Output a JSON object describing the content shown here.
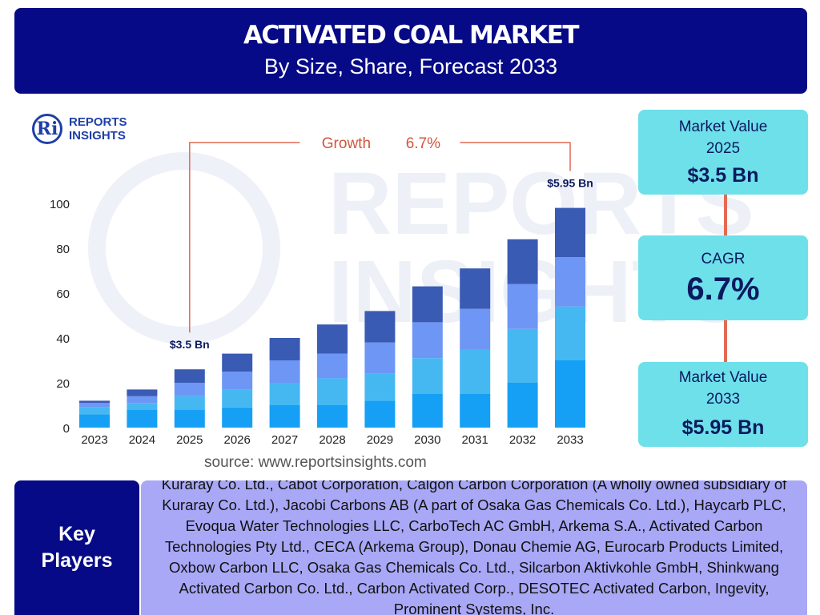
{
  "header": {
    "title": "ACTIVATED COAL MARKET",
    "subtitle": "By Size, Share, Forecast 2033"
  },
  "logo": {
    "line1": "REPORTS",
    "line2": "INSIGHTS",
    "mark": "Ri"
  },
  "watermark": {
    "text": "REPORTS INSIGHTS"
  },
  "chart_data": {
    "type": "bar",
    "stacked": true,
    "categories": [
      "2023",
      "2024",
      "2025",
      "2026",
      "2027",
      "2028",
      "2029",
      "2030",
      "2031",
      "2032",
      "2033"
    ],
    "series": [
      {
        "values": [
          6,
          8,
          8,
          9,
          10,
          10,
          12,
          15,
          15,
          20,
          30
        ]
      },
      {
        "values": [
          3,
          3,
          6,
          8,
          10,
          12,
          12,
          16,
          20,
          24,
          24
        ]
      },
      {
        "values": [
          2,
          3,
          6,
          8,
          10,
          11,
          14,
          16,
          18,
          20,
          22
        ]
      },
      {
        "values": [
          1,
          3,
          6,
          8,
          10,
          13,
          14,
          16,
          18,
          20,
          22
        ]
      }
    ],
    "colors": [
      "#15a0f5",
      "#45b8f2",
      "#6d96f5",
      "#3a5bb3"
    ],
    "ylim": [
      0,
      100
    ],
    "yticks": [
      0,
      20,
      40,
      60,
      80,
      100
    ],
    "grid": false,
    "annotations": [
      {
        "category": "2025",
        "label": "$3.5 Bn"
      },
      {
        "category": "2033",
        "label": "$5.95 Bn"
      }
    ],
    "growth_label": "Growth",
    "growth_value": "6.7%"
  },
  "source": "source: www.reportsinsights.com",
  "stats": {
    "value2025_label": "Market Value 2025",
    "value2025": "$3.5 Bn",
    "cagr_label": "CAGR",
    "cagr": "6.7%",
    "value2033_label": "Market Value 2033",
    "value2033": "$5.95 Bn"
  },
  "key_players": {
    "heading": "Key Players",
    "text": "Kuraray Co. Ltd., Cabot Corporation, Calgon Carbon Corporation (A wholly owned subsidiary of Kuraray Co. Ltd.), Jacobi Carbons AB (A part of Osaka Gas Chemicals Co. Ltd.), Haycarb PLC, Evoqua Water Technologies LLC, CarboTech AC GmbH, Arkema S.A., Activated Carbon Technologies Pty Ltd., CECA (Arkema Group), Donau Chemie AG, Eurocarb Products Limited, Oxbow Carbon LLC, Osaka Gas Chemicals Co. Ltd., Silcarbon Aktivkohle GmbH, Shinkwang Activated Carbon Co. Ltd., Carbon Activated Corp., DESOTEC Activated Carbon, Ingevity, Prominent Systems, Inc."
  }
}
